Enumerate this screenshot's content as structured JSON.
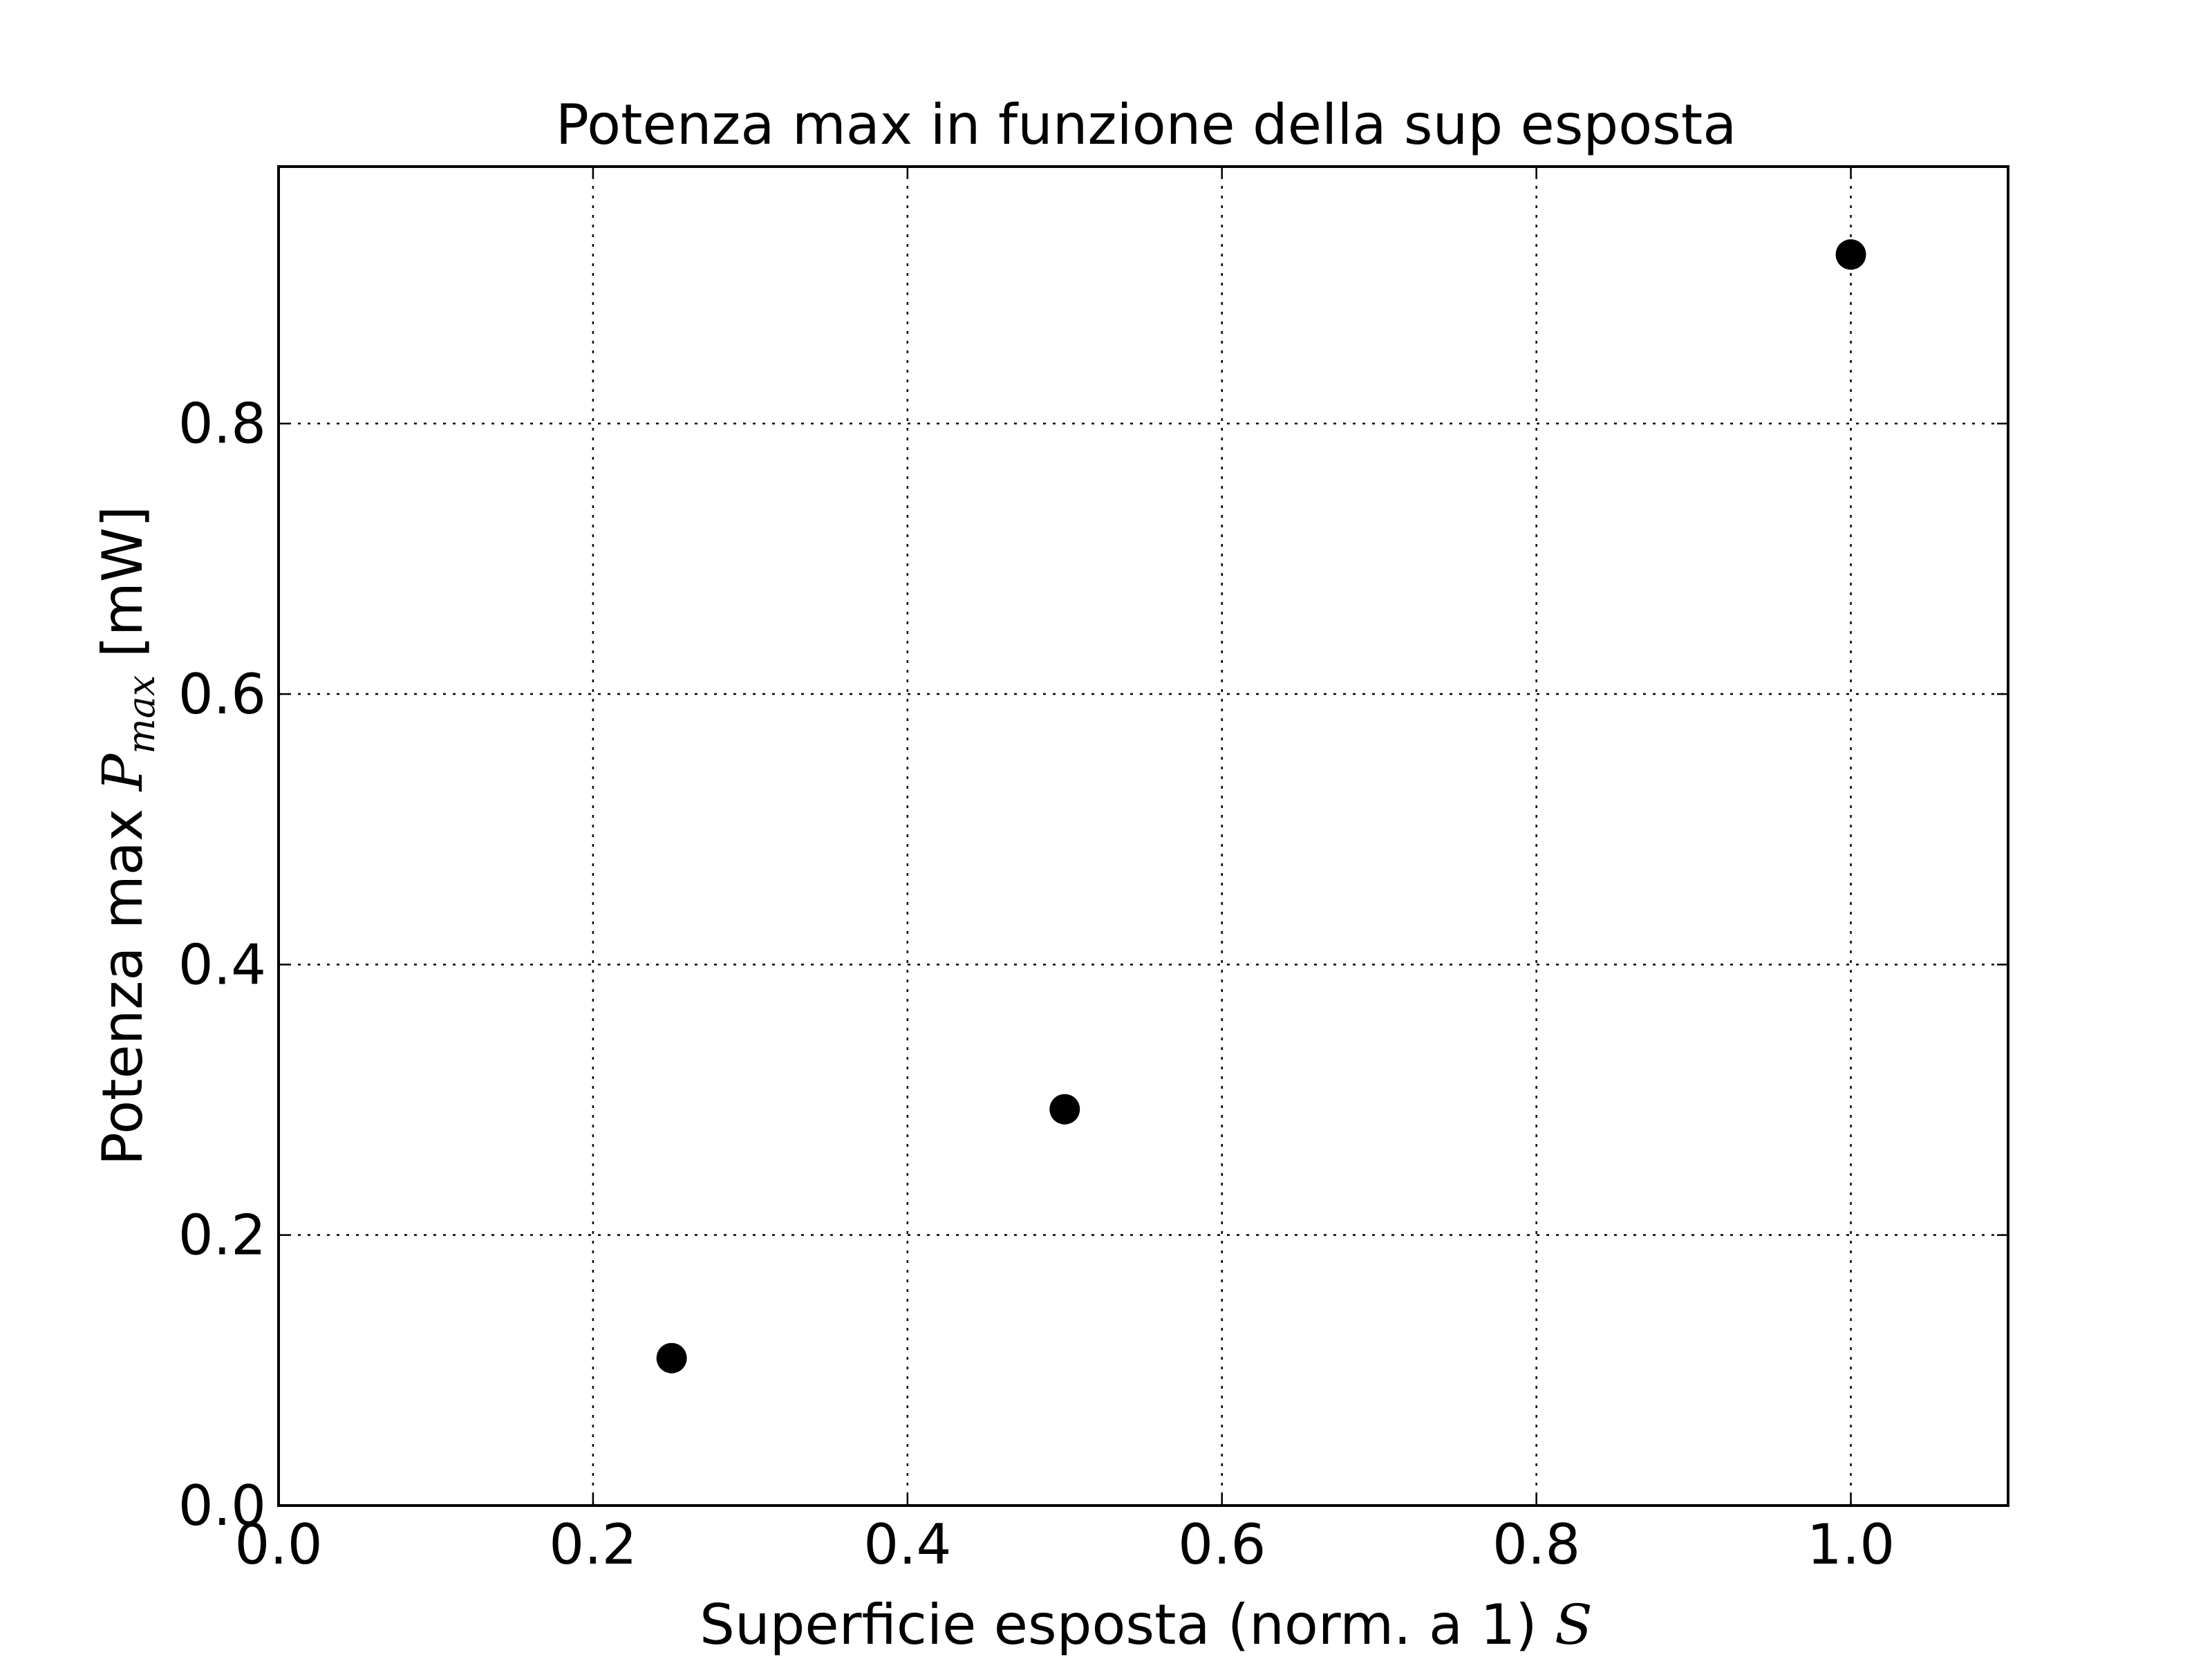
{
  "chart_data": {
    "type": "scatter",
    "title": "Potenza max in funzione della sup esposta",
    "xlabel": {
      "text": "Superficie esposta (norm. a 1) ",
      "math": "S"
    },
    "ylabel": {
      "text_before": "Potenza max ",
      "math": "P",
      "math_sub": "max",
      "text_after": " [mW]"
    },
    "xlim": [
      0.0,
      1.1
    ],
    "ylim": [
      0.0,
      0.99
    ],
    "xticks": [
      0.0,
      0.2,
      0.4,
      0.6,
      0.8,
      1.0
    ],
    "xtick_labels": [
      "0.0",
      "0.2",
      "0.4",
      "0.6",
      "0.8",
      "1.0"
    ],
    "yticks": [
      0.0,
      0.2,
      0.4,
      0.6,
      0.8
    ],
    "ytick_labels": [
      "0.0",
      "0.2",
      "0.4",
      "0.6",
      "0.8"
    ],
    "grid": true,
    "grid_style": "dotted",
    "marker_color": "#000000",
    "series": [
      {
        "x": [
          0.25,
          0.5,
          1.0
        ],
        "y": [
          0.109,
          0.293,
          0.925
        ]
      }
    ]
  }
}
